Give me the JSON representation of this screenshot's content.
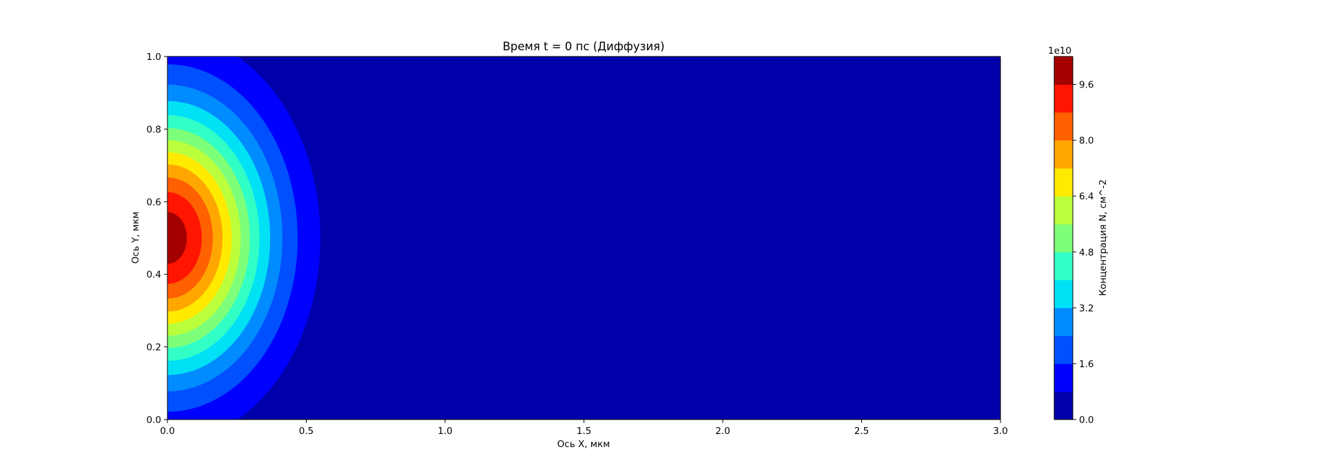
{
  "chart_data": {
    "type": "heatmap",
    "plot_kind": "filled-contour",
    "title": "Время t = 0 пс (Диффузия)",
    "xlabel": "Ось X, мкм",
    "ylabel": "Ось Y, мкм",
    "xlim": [
      0.0,
      3.0
    ],
    "ylim": [
      0.0,
      1.0
    ],
    "x_ticks": [
      "0.0",
      "0.5",
      "1.0",
      "1.5",
      "2.0",
      "2.5",
      "3.0"
    ],
    "y_ticks": [
      "0.0",
      "0.2",
      "0.4",
      "0.6",
      "0.8",
      "1.0"
    ],
    "grid": false,
    "field": {
      "description": "2D Gaussian concentration centred at the left edge",
      "peak_value": 100000000000,
      "center": [
        0.0,
        0.5
      ],
      "sigma_x": 0.245,
      "sigma_y": 0.25
    },
    "colorbar": {
      "label": "Концентрация N, см^-2",
      "offset_text": "1e10",
      "colormap": "jet",
      "levels": [
        0.0,
        0.8,
        1.6,
        2.4,
        3.2,
        4.0,
        4.8,
        5.6,
        6.4,
        7.2,
        8.0,
        8.8,
        9.6,
        10.4
      ],
      "tick_labels": [
        "0.0",
        "1.6",
        "3.2",
        "4.8",
        "6.4",
        "8.0",
        "9.6"
      ],
      "band_colors": [
        "#0000aa",
        "#0000ff",
        "#0050ff",
        "#008cff",
        "#00e1f6",
        "#31ffc6",
        "#7dff7a",
        "#bbff3c",
        "#ffea00",
        "#ffa700",
        "#ff6000",
        "#ff1500",
        "#a40000"
      ]
    }
  }
}
